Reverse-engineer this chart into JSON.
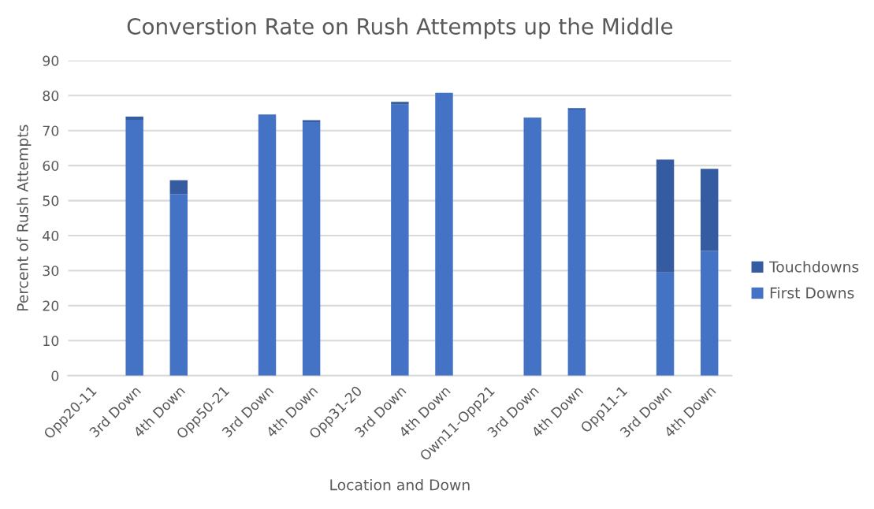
{
  "chart_data": {
    "type": "bar",
    "title": "Converstion Rate on Rush Attempts up the Middle",
    "xlabel": "Location and Down",
    "ylabel": "Percent of Rush Attempts",
    "categories": [
      "Opp20-11",
      "3rd Down",
      "4th Down",
      "Opp50-21",
      "3rd Down",
      "4th Down",
      "Opp31-20",
      "3rd Down",
      "4th Down",
      "Own11-Opp21",
      "3rd Down",
      "4th Down",
      "Opp11-1",
      "3rd Down",
      "4th Down"
    ],
    "series": [
      {
        "name": "First Downs",
        "color": "#4472c4",
        "values": [
          null,
          73.1,
          51.9,
          null,
          74.6,
          72.4,
          null,
          77.4,
          80.8,
          null,
          73.7,
          76.0,
          null,
          29.5,
          35.6
        ]
      },
      {
        "name": "Touchdowns",
        "color": "#355ca0",
        "values": [
          null,
          0.9,
          3.9,
          null,
          0,
          0.6,
          null,
          0.8,
          0,
          null,
          0,
          0.4,
          null,
          32.2,
          23.5
        ]
      }
    ],
    "stacked": true,
    "ylim": [
      0,
      90
    ],
    "yticks": [
      0,
      10,
      20,
      30,
      40,
      50,
      60,
      70,
      80,
      90
    ],
    "grid": "y",
    "legend": "right"
  }
}
